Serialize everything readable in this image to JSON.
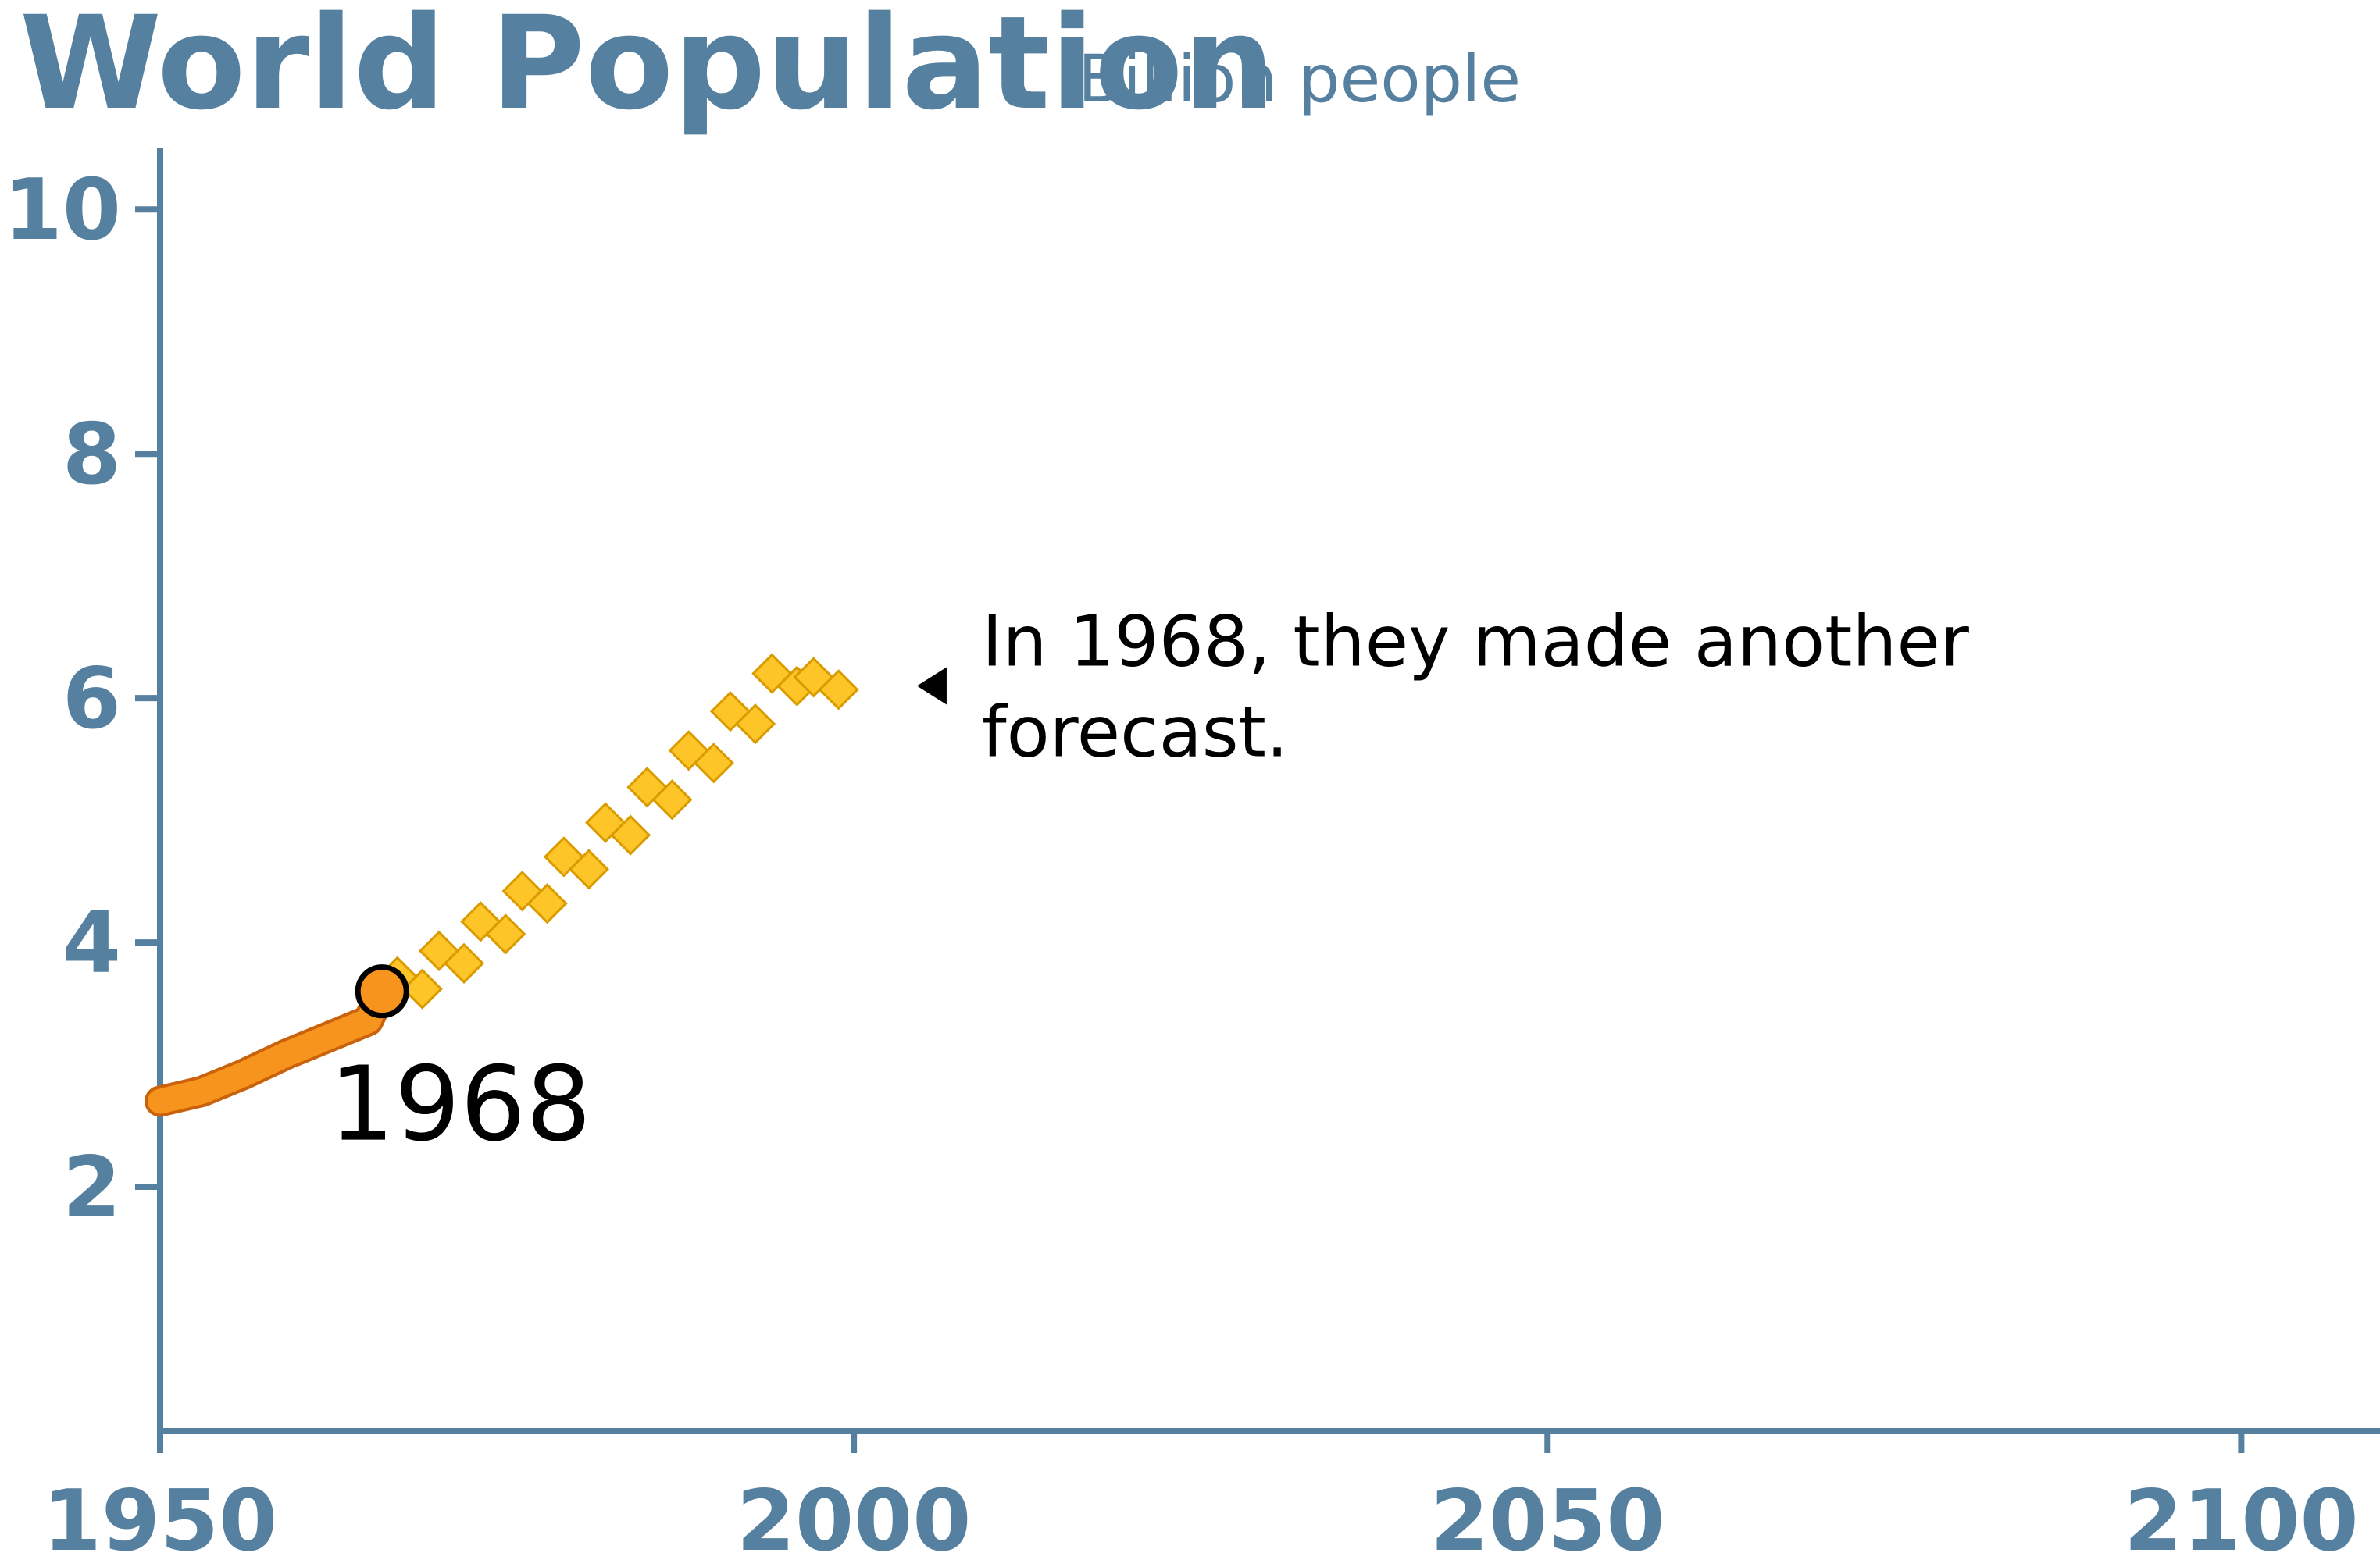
{
  "chart_data": {
    "type": "line",
    "title": "World Population",
    "subtitle": "Billion people",
    "xlabel": "",
    "ylabel": "",
    "xlim": [
      1950,
      2110
    ],
    "ylim": [
      0,
      10.5
    ],
    "x_ticks": [
      1950,
      2000,
      2050,
      2100
    ],
    "y_ticks": [
      2,
      4,
      6,
      8,
      10
    ],
    "grid": false,
    "series": [
      {
        "style": "solid",
        "color": "#f7941d",
        "x": [
          1950,
          1953,
          1956,
          1959,
          1962,
          1965,
          1966
        ],
        "y": [
          2.7,
          2.78,
          2.92,
          3.08,
          3.22,
          3.36,
          3.6
        ]
      },
      {
        "style": "diamonds",
        "color": "#fdc527",
        "x": [
          1968,
          1971,
          1974,
          1977,
          1980,
          1983,
          1986,
          1989,
          1992,
          1995,
          1998
        ],
        "y": [
          3.67,
          3.88,
          4.12,
          4.37,
          4.65,
          4.93,
          5.22,
          5.52,
          5.84,
          6.15,
          6.12
        ]
      }
    ],
    "highlight_point": {
      "x": 1966,
      "y": 3.6,
      "label": "1968",
      "color": "#f7941d"
    },
    "annotation": {
      "lines": [
        "In 1968, they made another",
        "forecast."
      ],
      "pointer_x": 2005,
      "pointer_y": 6.1
    },
    "axis_color": "#56809f"
  }
}
